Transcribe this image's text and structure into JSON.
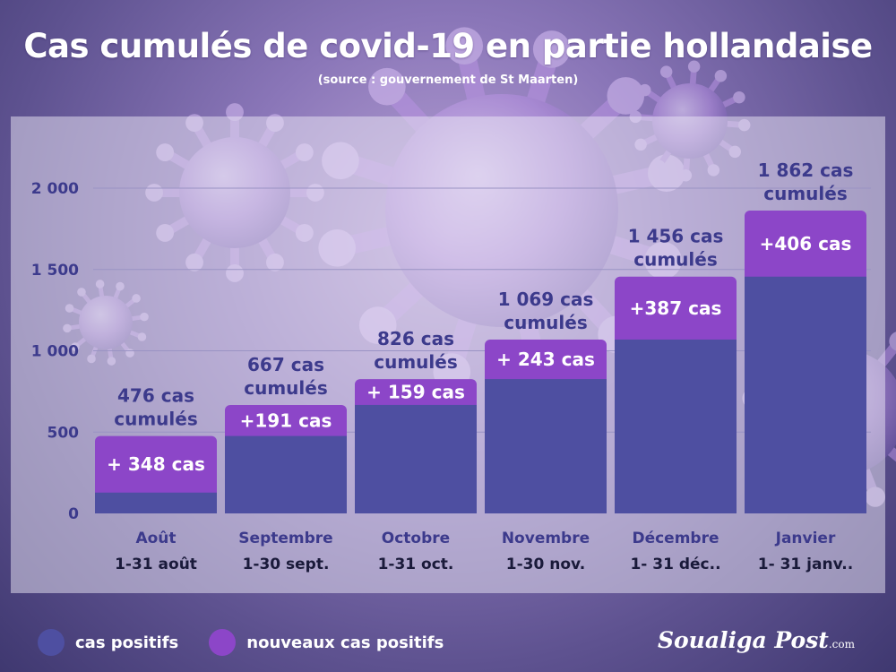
{
  "title": "Cas cumulés de covid-19 en partie hollandaise",
  "subtitle": "(source : gouvernement de St Maarten)",
  "colors": {
    "positive": "#4e4fa1",
    "new": "#8c46c8",
    "axis": "#3c3a8c"
  },
  "chart_data": {
    "type": "bar",
    "stacked": true,
    "ylim": [
      0,
      2000
    ],
    "yticks": [
      0,
      500,
      1000,
      1500,
      2000
    ],
    "ytick_labels": [
      "0",
      "500",
      "1 000",
      "1 500",
      "2 000"
    ],
    "grid": true,
    "categories": [
      "Août",
      "Septembre",
      "Octobre",
      "Novembre",
      "Décembre",
      "Janvier"
    ],
    "date_ranges": [
      "1-31 août",
      "1-30 sept.",
      "1-31 oct.",
      "1-30 nov.",
      "1- 31 déc..",
      "1- 31 janv.."
    ],
    "series": [
      {
        "name": "cas positifs",
        "values": [
          128,
          476,
          667,
          826,
          1069,
          1456
        ]
      },
      {
        "name": "nouveaux cas positifs",
        "values": [
          348,
          191,
          159,
          243,
          387,
          406
        ]
      }
    ],
    "new_labels": [
      "+ 348 cas",
      "+191 cas",
      "+ 159 cas",
      "+ 243 cas",
      "+387 cas",
      "+406 cas"
    ],
    "cumulative_labels": [
      [
        "476 cas",
        "cumulés"
      ],
      [
        "667 cas",
        "cumulés"
      ],
      [
        "826 cas",
        "cumulés"
      ],
      [
        "1 069 cas",
        "cumulés"
      ],
      [
        "1 456 cas",
        "cumulés"
      ],
      [
        "1 862 cas",
        "cumulés"
      ]
    ],
    "legend_position": "bottom-left"
  },
  "legend": [
    {
      "label": "cas positifs",
      "color": "#4e4fa1"
    },
    {
      "label": "nouveaux cas positifs",
      "color": "#8c46c8"
    }
  ],
  "brand": {
    "name": "Soualiga Post",
    "suffix": ".com"
  }
}
